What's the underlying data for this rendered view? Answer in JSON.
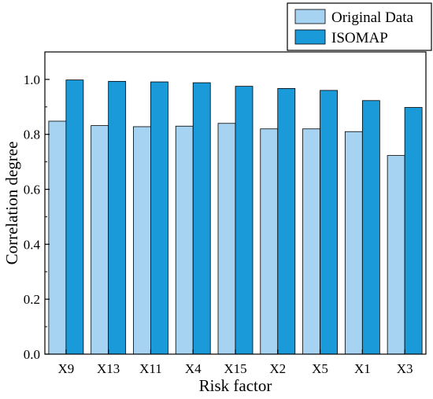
{
  "chart_data": {
    "type": "bar",
    "categories": [
      "X9",
      "X13",
      "X11",
      "X4",
      "X15",
      "X2",
      "X5",
      "X1",
      "X3"
    ],
    "series": [
      {
        "name": "Original Data",
        "values": [
          0.848,
          0.832,
          0.828,
          0.83,
          0.84,
          0.82,
          0.82,
          0.81,
          0.723
        ],
        "color": "#a6d3f1"
      },
      {
        "name": "ISOMAP",
        "values": [
          0.998,
          0.993,
          0.991,
          0.988,
          0.975,
          0.967,
          0.96,
          0.923,
          0.898
        ],
        "color": "#1a9ad9"
      }
    ],
    "xlabel": "Risk factor",
    "ylabel": "Correlation degree",
    "ylim": [
      0,
      1.1
    ],
    "yticks": [
      "0.0",
      "0.2",
      "0.4",
      "0.6",
      "0.8",
      "1.0"
    ],
    "legend_position": "top-right",
    "grid": false
  }
}
